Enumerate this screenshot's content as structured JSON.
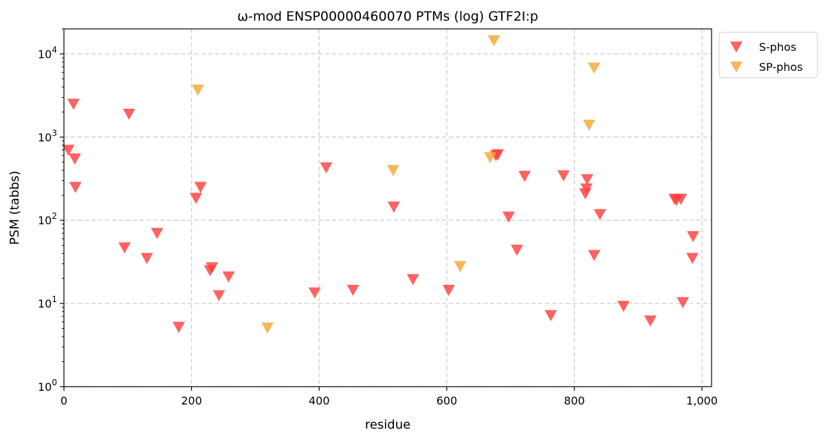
{
  "chart_data": {
    "type": "scatter",
    "title": "ω-mod ENSP00000460070 PTMs (log) GTF2I:p",
    "xlabel": "residue",
    "ylabel": "PSM (tabbs)",
    "xlim": [
      0,
      1015
    ],
    "ylim": [
      1,
      20000
    ],
    "yscale": "log",
    "x_ticks": [
      0,
      200,
      400,
      600,
      800,
      1000
    ],
    "x_tick_labels": [
      "0",
      "200",
      "400",
      "600",
      "800",
      "1,000"
    ],
    "y_ticks": [
      1,
      10,
      100,
      1000,
      10000
    ],
    "y_tick_base": "10",
    "y_tick_exponents": [
      "0",
      "1",
      "2",
      "3",
      "4"
    ],
    "grid": true,
    "legend_position": "outside-top-right",
    "marker": "triangle-down",
    "series": [
      {
        "name": "S-phos",
        "color": "#ff3b3b",
        "points": [
          [
            7,
            700
          ],
          [
            15,
            2500
          ],
          [
            17,
            550
          ],
          [
            18,
            250
          ],
          [
            95,
            47
          ],
          [
            102,
            1900
          ],
          [
            130,
            35
          ],
          [
            146,
            70
          ],
          [
            180,
            5.2
          ],
          [
            207,
            185
          ],
          [
            214,
            250
          ],
          [
            229,
            25
          ],
          [
            232,
            27
          ],
          [
            243,
            12.5
          ],
          [
            258,
            21
          ],
          [
            393,
            13.5
          ],
          [
            411,
            430
          ],
          [
            453,
            14.5
          ],
          [
            517,
            145
          ],
          [
            547,
            19.5
          ],
          [
            603,
            14.5
          ],
          [
            677,
            600
          ],
          [
            680,
            620
          ],
          [
            697,
            110
          ],
          [
            710,
            44
          ],
          [
            722,
            340
          ],
          [
            763,
            7.2
          ],
          [
            783,
            345
          ],
          [
            817,
            210
          ],
          [
            819,
            240
          ],
          [
            820,
            310
          ],
          [
            831,
            38
          ],
          [
            840,
            118
          ],
          [
            877,
            9.3
          ],
          [
            919,
            6.2
          ],
          [
            957,
            180
          ],
          [
            960,
            175
          ],
          [
            967,
            180
          ],
          [
            970,
            10.3
          ],
          [
            985,
            35
          ],
          [
            986,
            64
          ]
        ]
      },
      {
        "name": "SP-phos",
        "color": "#f0a830",
        "points": [
          [
            210,
            3700
          ],
          [
            319,
            5.1
          ],
          [
            516,
            400
          ],
          [
            621,
            28
          ],
          [
            668,
            570
          ],
          [
            674,
            14500
          ],
          [
            823,
            1400
          ],
          [
            831,
            6800
          ]
        ]
      }
    ]
  }
}
